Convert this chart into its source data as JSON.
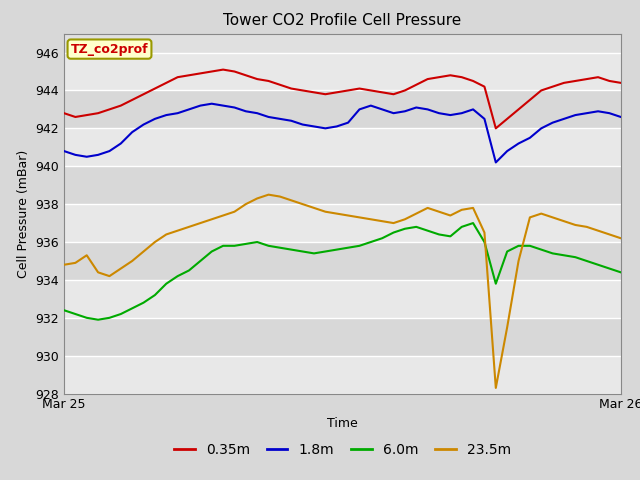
{
  "title": "Tower CO2 Profile Cell Pressure",
  "ylabel": "Cell Pressure (mBar)",
  "xlabel": "Time",
  "xlabels": [
    "Mar 25",
    "Mar 26"
  ],
  "tag_label": "TZ_co2prof",
  "tag_color": "#cc0000",
  "tag_bg": "#ffffcc",
  "tag_border": "#999900",
  "ylim": [
    928,
    947
  ],
  "yticks": [
    928,
    930,
    932,
    934,
    936,
    938,
    940,
    942,
    944,
    946
  ],
  "fig_bg": "#d8d8d8",
  "plot_bg_light": "#e8e8e8",
  "plot_bg_dark": "#d0d0d0",
  "grid_color": "#ffffff",
  "legend_entries": [
    "0.35m",
    "1.8m",
    "6.0m",
    "23.5m"
  ],
  "line_colors": [
    "#cc0000",
    "#0000cc",
    "#00aa00",
    "#cc8800"
  ],
  "series_red": [
    942.8,
    942.6,
    942.7,
    942.8,
    943.0,
    943.2,
    943.5,
    943.8,
    944.1,
    944.4,
    944.7,
    944.8,
    944.9,
    945.0,
    945.1,
    945.0,
    944.8,
    944.6,
    944.5,
    944.3,
    944.1,
    944.0,
    943.9,
    943.8,
    943.9,
    944.0,
    944.1,
    944.0,
    943.9,
    943.8,
    944.0,
    944.3,
    944.6,
    944.7,
    944.8,
    944.7,
    944.5,
    944.2,
    942.0,
    942.5,
    943.0,
    943.5,
    944.0,
    944.2,
    944.4,
    944.5,
    944.6,
    944.7,
    944.5,
    944.4
  ],
  "series_blue": [
    940.8,
    940.6,
    940.5,
    940.6,
    940.8,
    941.2,
    941.8,
    942.2,
    942.5,
    942.7,
    942.8,
    943.0,
    943.2,
    943.3,
    943.2,
    943.1,
    942.9,
    942.8,
    942.6,
    942.5,
    942.4,
    942.2,
    942.1,
    942.0,
    942.1,
    942.3,
    943.0,
    943.2,
    943.0,
    942.8,
    942.9,
    943.1,
    943.0,
    942.8,
    942.7,
    942.8,
    943.0,
    942.5,
    940.2,
    940.8,
    941.2,
    941.5,
    942.0,
    942.3,
    942.5,
    942.7,
    942.8,
    942.9,
    942.8,
    942.6
  ],
  "series_green": [
    932.4,
    932.2,
    932.0,
    931.9,
    932.0,
    932.2,
    932.5,
    932.8,
    933.2,
    933.8,
    934.2,
    934.5,
    935.0,
    935.5,
    935.8,
    935.8,
    935.9,
    936.0,
    935.8,
    935.7,
    935.6,
    935.5,
    935.4,
    935.5,
    935.6,
    935.7,
    935.8,
    936.0,
    936.2,
    936.5,
    936.7,
    936.8,
    936.6,
    936.4,
    936.3,
    936.8,
    937.0,
    936.0,
    933.8,
    935.5,
    935.8,
    935.8,
    935.6,
    935.4,
    935.3,
    935.2,
    935.0,
    934.8,
    934.6,
    934.4
  ],
  "series_orange": [
    934.8,
    934.9,
    935.3,
    934.4,
    934.2,
    934.6,
    935.0,
    935.5,
    936.0,
    936.4,
    936.6,
    936.8,
    937.0,
    937.2,
    937.4,
    937.6,
    938.0,
    938.3,
    938.5,
    938.4,
    938.2,
    938.0,
    937.8,
    937.6,
    937.5,
    937.4,
    937.3,
    937.2,
    937.1,
    937.0,
    937.2,
    937.5,
    937.8,
    937.6,
    937.4,
    937.7,
    937.8,
    936.5,
    928.3,
    931.5,
    935.0,
    937.3,
    937.5,
    937.3,
    937.1,
    936.9,
    936.8,
    936.6,
    936.4,
    936.2
  ]
}
